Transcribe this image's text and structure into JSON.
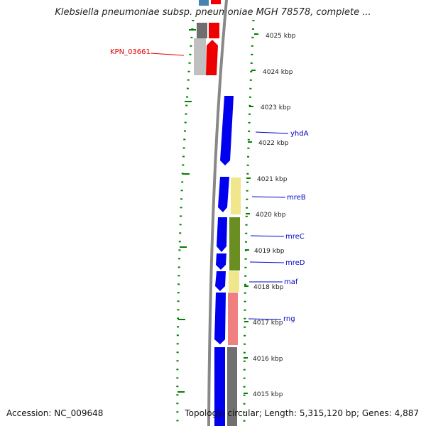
{
  "title": "Klebsiella pneumoniae subsp. pneumoniae MGH 78578, complete ...",
  "footer": {
    "accession": "Accession: NC_009648",
    "summary": "Topology: circular; Length: 5,315,120 bp; Genes: 4,887"
  },
  "ruler": {
    "ticks": [
      {
        "kbp": 4025,
        "label": "4025 kbp"
      },
      {
        "kbp": 4024,
        "label": "4024 kbp"
      },
      {
        "kbp": 4023,
        "label": "4023 kbp"
      },
      {
        "kbp": 4022,
        "label": "4022 kbp"
      },
      {
        "kbp": 4021,
        "label": "4021 kbp"
      },
      {
        "kbp": 4020,
        "label": "4020 kbp"
      },
      {
        "kbp": 4019,
        "label": "4019 kbp"
      },
      {
        "kbp": 4018,
        "label": "4018 kbp"
      },
      {
        "kbp": 4017,
        "label": "4017 kbp"
      },
      {
        "kbp": 4016,
        "label": "4016 kbp"
      },
      {
        "kbp": 4015,
        "label": "4015 kbp"
      }
    ]
  },
  "gene_labels": [
    {
      "name": "KPN_03661",
      "color": "#e00000"
    },
    {
      "name": "yhdA",
      "color": "#0000c8"
    },
    {
      "name": "mreB",
      "color": "#0000c8"
    },
    {
      "name": "mreC",
      "color": "#0000c8"
    },
    {
      "name": "mreD",
      "color": "#0000c8"
    },
    {
      "name": "maf",
      "color": "#0000c8"
    },
    {
      "name": "rng",
      "color": "#0000c8"
    }
  ],
  "colors": {
    "backbone": "#8a8a8a",
    "cds_forward": "#0000ee",
    "cds_reverse": "#ee0000",
    "tick_green": "#008000",
    "cog_grey_dark": "#707070",
    "cog_grey_light": "#c0c0c0",
    "cog_yellow": "#f0e68c",
    "cog_olive": "#6b8e23",
    "cog_pink": "#f08080",
    "cog_blue_top": "#4682b4"
  }
}
